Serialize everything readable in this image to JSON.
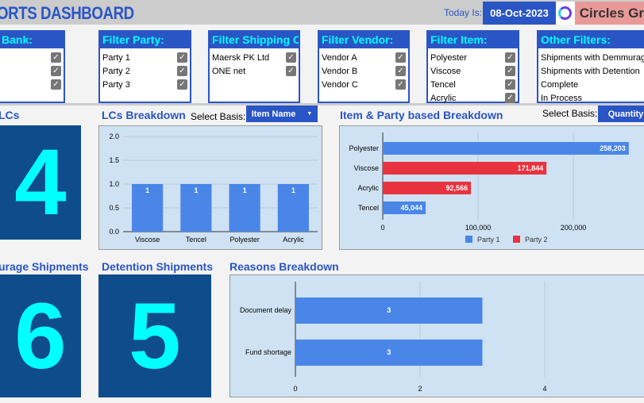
{
  "header": {
    "title": "ORTS DASHBOARD",
    "today_label": "Today Is:",
    "date": "08-Oct-2023",
    "brand": "Circles Gr"
  },
  "filters": [
    {
      "title": "Bank:",
      "items": [
        {
          "label": "",
          "checked": true
        },
        {
          "label": "",
          "checked": true
        },
        {
          "label": "",
          "checked": true
        }
      ]
    },
    {
      "title": "Filter Party:",
      "items": [
        {
          "label": "Party 1",
          "checked": true
        },
        {
          "label": "Party 2",
          "checked": true
        },
        {
          "label": "Party 3",
          "checked": true
        }
      ]
    },
    {
      "title": "Filter Shipping Co:",
      "items": [
        {
          "label": "Maersk PK Ltd",
          "checked": true
        },
        {
          "label": "ONE net",
          "checked": true
        }
      ]
    },
    {
      "title": "Filter Vendor:",
      "items": [
        {
          "label": "Vendor A",
          "checked": true
        },
        {
          "label": "Vendor B",
          "checked": true
        },
        {
          "label": "Vendor C",
          "checked": true
        }
      ]
    },
    {
      "title": "Filter Item:",
      "items": [
        {
          "label": "Polyester",
          "checked": true
        },
        {
          "label": "Viscose",
          "checked": true
        },
        {
          "label": "Tencel",
          "checked": true
        },
        {
          "label": "Acrylic",
          "checked": true
        }
      ]
    },
    {
      "title": "Other Filters:",
      "items": [
        {
          "label": "Shipments with Demmurage"
        },
        {
          "label": "Shipments with Detention"
        },
        {
          "label": "Complete"
        },
        {
          "label": "In Process"
        }
      ]
    }
  ],
  "kpis": {
    "lcs": {
      "title": "LCs",
      "value": "4"
    },
    "demurrage": {
      "title": "urage Shipments",
      "value": "6"
    },
    "detention": {
      "title": "Detention Shipments",
      "value": "5"
    }
  },
  "lcs_breakdown": {
    "title": "LCs Breakdown",
    "select_label": "Select Basis:",
    "select_value": "Item Name"
  },
  "item_party": {
    "title": "Item & Party based Breakdown",
    "select_label": "Select Basis:",
    "select_value": "Quantity"
  },
  "reasons": {
    "title": "Reasons Breakdown"
  },
  "colors": {
    "blue": "#2a55c5",
    "cyan": "#00ffff",
    "tile": "#0e4c8c",
    "bar_blue": "#4a86e8",
    "bar_red": "#e8333f"
  },
  "chart_data": [
    {
      "type": "bar",
      "categories": [
        "Viscose",
        "Tencel",
        "Polyester",
        "Acrylic"
      ],
      "values": [
        1,
        1,
        1,
        1
      ],
      "ylim": [
        0,
        2
      ],
      "yticks": [
        "0.0",
        "0.5",
        "1.0",
        "1.5",
        "2.0"
      ],
      "grid": true
    },
    {
      "type": "bar",
      "orientation": "horizontal",
      "categories": [
        "Polyester",
        "Viscose",
        "Acrylic",
        "Tencel"
      ],
      "series": [
        {
          "name": "Party 1",
          "values": [
            258203,
            null,
            null,
            45044
          ]
        },
        {
          "name": "Party 2",
          "values": [
            null,
            171844,
            92566,
            null
          ]
        }
      ],
      "value_labels": [
        "258,203",
        "171,844",
        "92,566",
        "45,044"
      ],
      "xlim": [
        0,
        300000
      ],
      "xticks": [
        "0",
        "100,000",
        "200,000"
      ],
      "legend": "bottom",
      "grid": true
    },
    {
      "type": "bar",
      "orientation": "horizontal",
      "categories": [
        "Document delay",
        "Fund shortage"
      ],
      "values": [
        3,
        3
      ],
      "xlim": [
        0,
        5
      ],
      "xticks": [
        "0",
        "2",
        "4"
      ],
      "grid": true
    }
  ]
}
